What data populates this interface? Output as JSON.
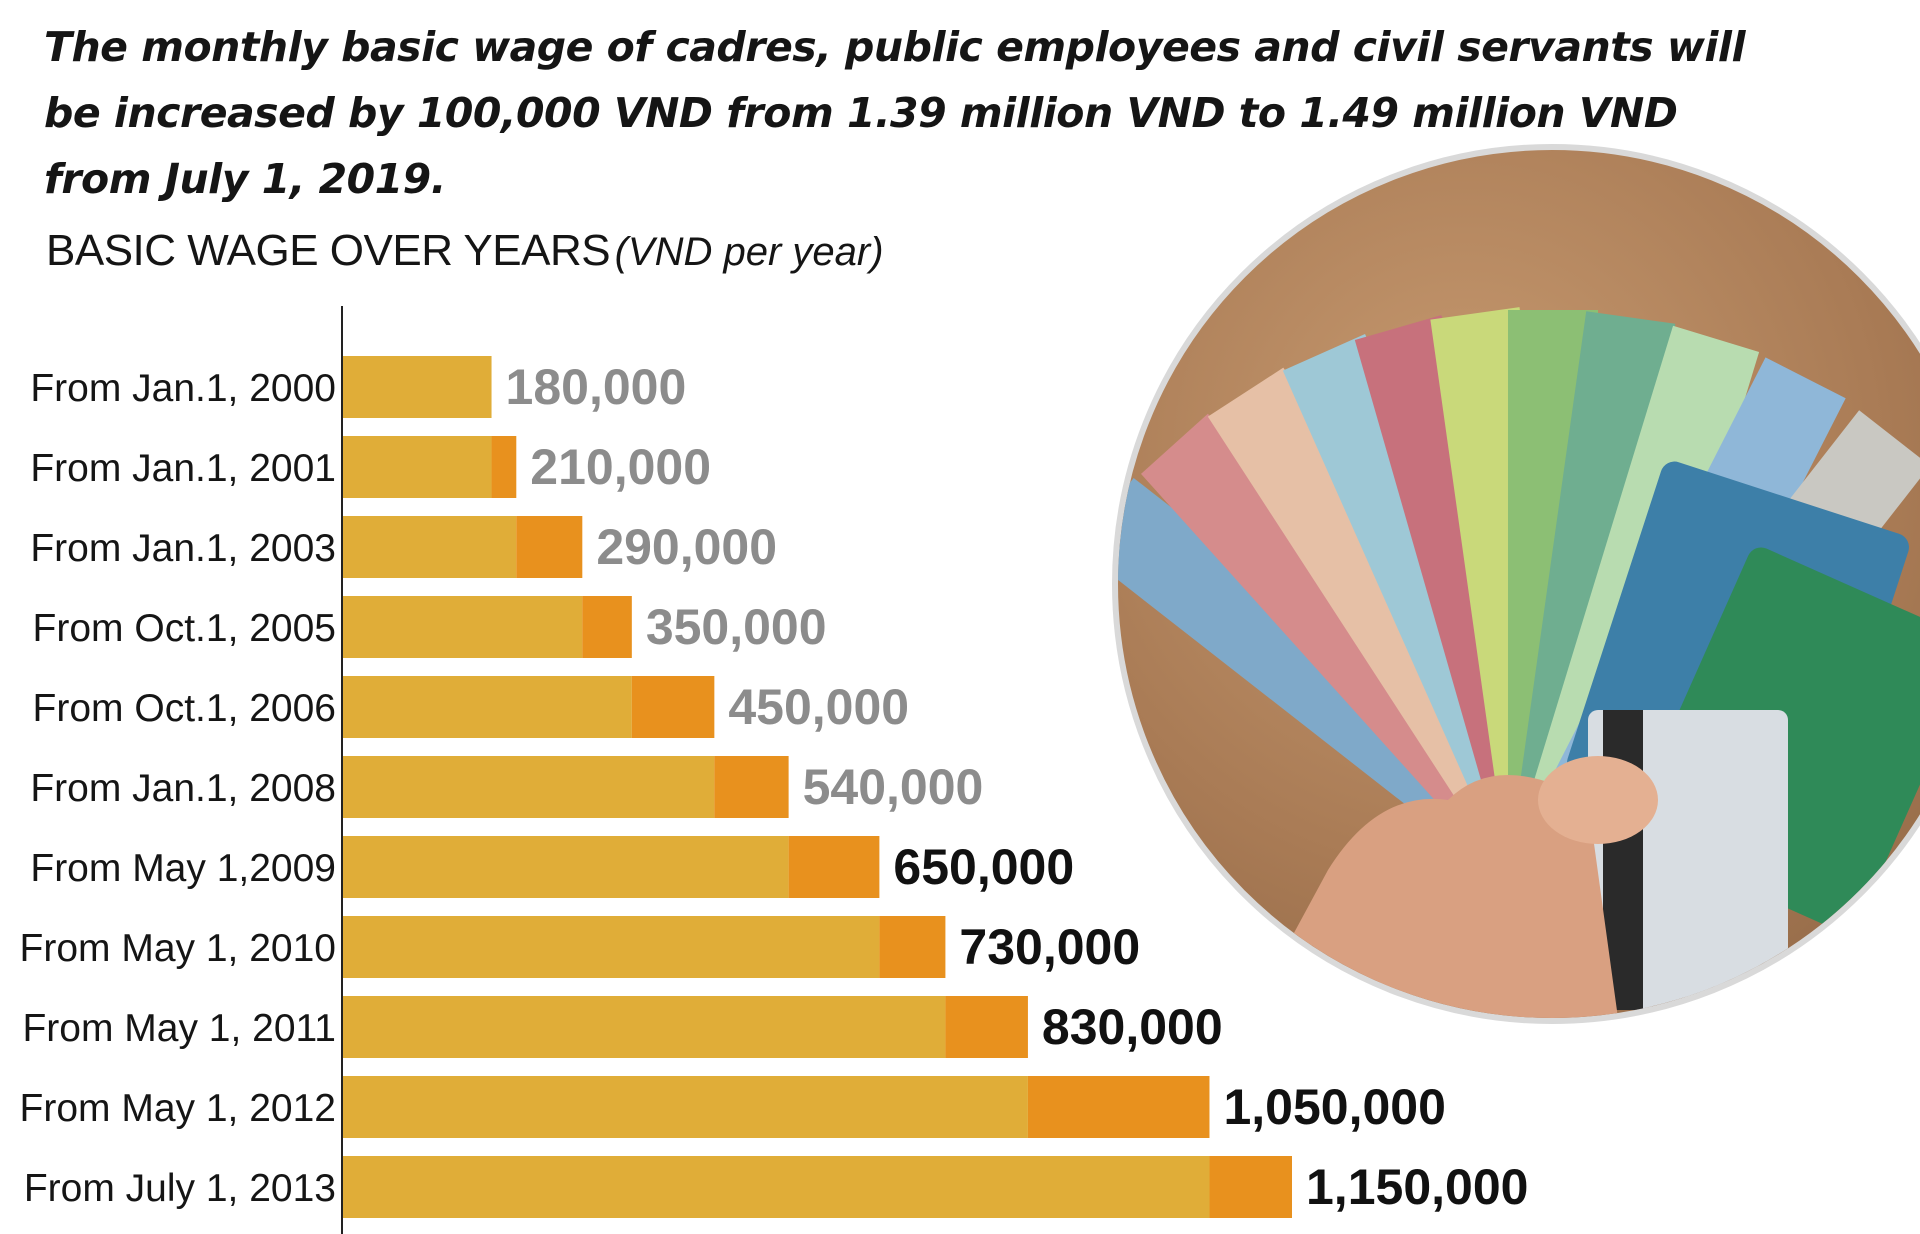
{
  "headline": "The monthly basic wage of cadres, public employees and civil servants will be increased by 100,000 VND from 1.39 million VND to 1.49 million VND from July 1, 2019.",
  "chart_title": "BASIC WAGE OVER YEARS",
  "chart_unit": "(VND per year)",
  "colors": {
    "base_bar": "#e0ad38",
    "increase_bar": "#e8911e",
    "label_gray": "#8c8c8c",
    "label_dark": "#111111"
  },
  "photo": {
    "icon": "money-fan-photo"
  },
  "chart_data": {
    "type": "bar",
    "orientation": "horizontal",
    "title": "BASIC WAGE OVER YEARS",
    "unit": "(VND per year)",
    "categories": [
      "From Jan.1, 2000",
      "From Jan.1, 2001",
      "From Jan.1, 2003",
      "From Oct.1, 2005",
      "From Oct.1, 2006",
      "From Jan.1, 2008",
      "From May 1,2009",
      "From May 1, 2010",
      "From May 1, 2011",
      "From May 1, 2012",
      "From July 1, 2013"
    ],
    "values": [
      180000,
      210000,
      290000,
      350000,
      450000,
      540000,
      650000,
      730000,
      830000,
      1050000,
      1150000
    ],
    "value_labels": [
      "180,000",
      "210,000",
      "290,000",
      "350,000",
      "450,000",
      "540,000",
      "650,000",
      "730,000",
      "830,000",
      "1,050,000",
      "1,150,000"
    ],
    "highlight_from_index": 6
  }
}
